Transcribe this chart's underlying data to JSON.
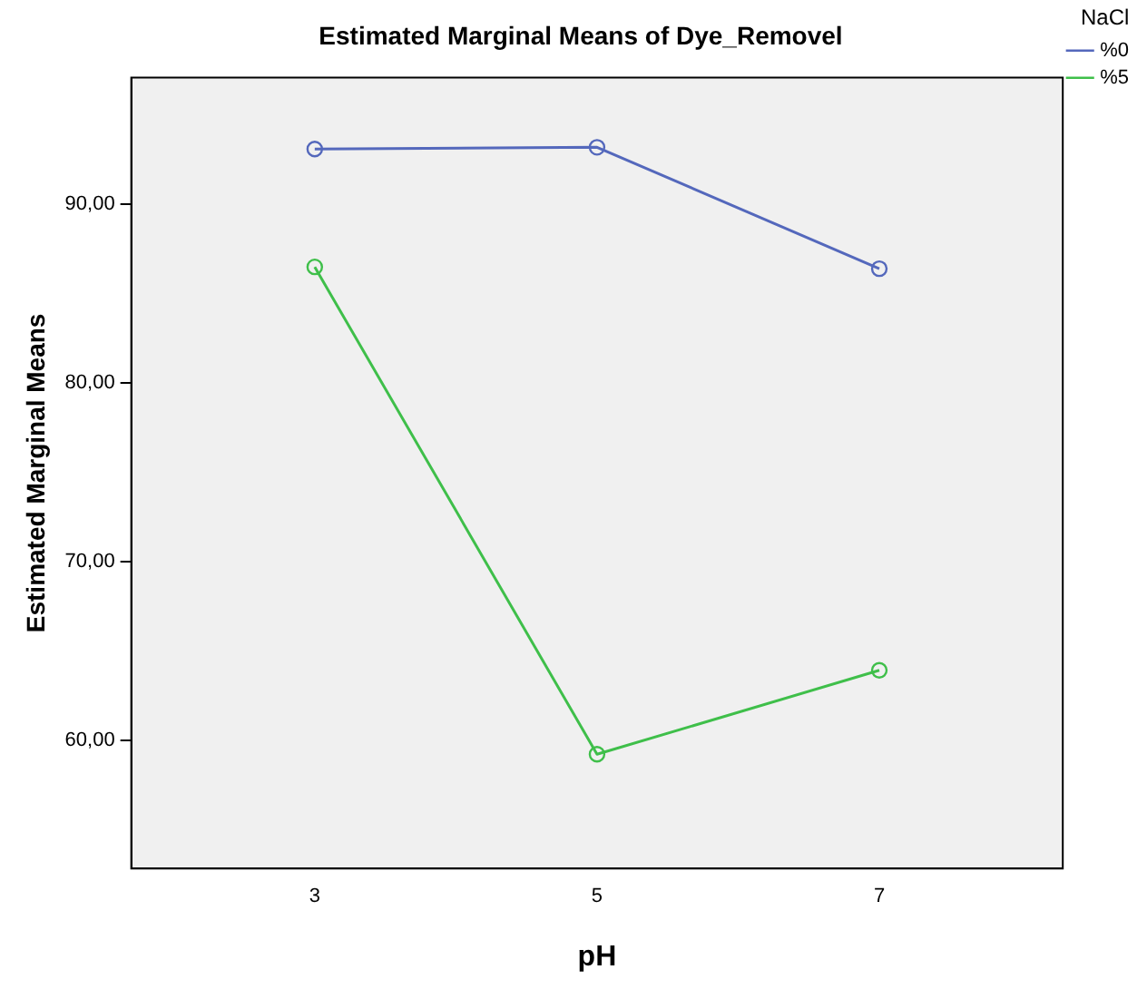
{
  "chart_data": {
    "type": "line",
    "title": "Estimated Marginal Means of Dye_Removel",
    "xlabel": "pH",
    "ylabel": "Estimated Marginal Means",
    "legend_title": "NaCl",
    "x": [
      3,
      5,
      7
    ],
    "series": [
      {
        "name": "%0",
        "color": "#5468bc",
        "values": [
          93.1,
          93.2,
          86.4
        ]
      },
      {
        "name": "%5",
        "color": "#3fbf4a",
        "values": [
          86.5,
          59.2,
          63.9
        ]
      }
    ],
    "xlim": [
      1.7,
      8.3
    ],
    "xticks": [
      3,
      5,
      7
    ],
    "ylim": [
      52.8,
      97.1
    ],
    "yticks": [
      {
        "value": 60,
        "label": "60,00"
      },
      {
        "value": 70,
        "label": "70,00"
      },
      {
        "value": 80,
        "label": "80,00"
      },
      {
        "value": 90,
        "label": "90,00"
      }
    ],
    "grid": false,
    "legend": "top right",
    "marker": "circle",
    "line_style": "solid"
  }
}
